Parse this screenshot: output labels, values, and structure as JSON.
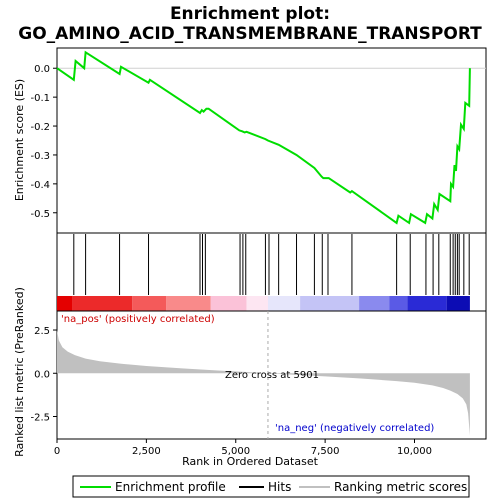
{
  "chart_data": {
    "type": "line",
    "title_line1": "Enrichment plot:",
    "title_line2": "GO_AMINO_ACID_TRANSMEMBRANE_TRANSPORT",
    "xlabel": "Rank in Ordered Dataset",
    "ylabel_top": "Enrichment score (ES)",
    "ylabel_bottom": "Ranked list metric (PreRanked)",
    "xlim": [
      0,
      12000
    ],
    "es_ylim": [
      -0.57,
      0.07
    ],
    "metric_ylim": [
      -3.8,
      3.6
    ],
    "x_ticks": [
      0,
      2500,
      5000,
      7500,
      10000
    ],
    "x_tick_labels": [
      "0",
      "2,500",
      "5,000",
      "7,500",
      "10,000"
    ],
    "es_ticks": [
      0.0,
      -0.1,
      -0.2,
      -0.3,
      -0.4,
      -0.5
    ],
    "es_tick_labels": [
      "0.0",
      "-0.1",
      "-0.2",
      "-0.3",
      "-0.4",
      "-0.5"
    ],
    "metric_ticks": [
      2.5,
      0.0,
      -2.5
    ],
    "metric_tick_labels": [
      "2.5",
      "0.0",
      "-2.5"
    ],
    "pos_label": "'na_pos' (positively correlated)",
    "neg_label": "'na_neg' (negatively correlated)",
    "zero_cross_label": "Zero cross at 5901",
    "zero_cross": 5901,
    "n_genes": 11550,
    "es_curve": {
      "x": [
        0,
        470,
        520,
        760,
        800,
        1750,
        1790,
        2560,
        2600,
        4000,
        4050,
        4100,
        4180,
        4240,
        5100,
        5180,
        5250,
        5300,
        5830,
        5900,
        6200,
        6700,
        7200,
        7400,
        7450,
        7600,
        8200,
        8250,
        9500,
        9550,
        9850,
        9900,
        10300,
        10350,
        10500,
        10550,
        10650,
        10700,
        11000,
        11020,
        11080,
        11120,
        11160,
        11200,
        11250,
        11300,
        11380,
        11420,
        11530,
        11550
      ],
      "y": [
        0.0,
        -0.04,
        0.025,
        0.0,
        0.055,
        -0.02,
        0.005,
        -0.05,
        -0.04,
        -0.155,
        -0.145,
        -0.15,
        -0.14,
        -0.14,
        -0.215,
        -0.218,
        -0.222,
        -0.22,
        -0.245,
        -0.25,
        -0.265,
        -0.3,
        -0.345,
        -0.375,
        -0.38,
        -0.38,
        -0.43,
        -0.425,
        -0.535,
        -0.51,
        -0.535,
        -0.505,
        -0.535,
        -0.505,
        -0.52,
        -0.47,
        -0.49,
        -0.435,
        -0.46,
        -0.4,
        -0.41,
        -0.335,
        -0.355,
        -0.27,
        -0.28,
        -0.195,
        -0.21,
        -0.12,
        -0.13,
        0.0
      ]
    },
    "hits": [
      470,
      800,
      1750,
      2560,
      4000,
      4070,
      4150,
      5120,
      5200,
      5280,
      5830,
      5930,
      6200,
      6700,
      7200,
      7420,
      7580,
      8250,
      9500,
      9880,
      10320,
      10520,
      10680,
      11000,
      11080,
      11140,
      11200,
      11250,
      11380,
      11530
    ],
    "metric_curve": {
      "x": [
        0,
        50,
        150,
        300,
        500,
        800,
        1200,
        1800,
        2500,
        3500,
        4500,
        5500,
        5901,
        6500,
        7500,
        8500,
        9500,
        10000,
        10500,
        10800,
        11000,
        11200,
        11350,
        11450,
        11500,
        11550
      ],
      "y": [
        2.5,
        1.9,
        1.5,
        1.25,
        1.05,
        0.85,
        0.7,
        0.55,
        0.42,
        0.28,
        0.16,
        0.05,
        0.0,
        -0.07,
        -0.18,
        -0.3,
        -0.45,
        -0.55,
        -0.7,
        -0.85,
        -1.0,
        -1.2,
        -1.45,
        -1.8,
        -2.3,
        -3.6
      ]
    },
    "band_colors": [
      "#e40000",
      "#ec2a2a",
      "#f45a5a",
      "#f98a8a",
      "#fbc2d8",
      "#fde6f2",
      "#e6e6fb",
      "#c4c4f6",
      "#8a8aee",
      "#5a5ae6",
      "#2a2ad6",
      "#0c0cb4"
    ],
    "band_edges": [
      0,
      420,
      2100,
      3050,
      4300,
      5300,
      5901,
      6800,
      8450,
      9300,
      9800,
      10900,
      11550
    ],
    "colors": {
      "es_line": "#00dd00",
      "hit_line": "#000000",
      "metric_fill": "#c0c0c0",
      "zero_line": "#aaaaaa"
    },
    "legend": {
      "items": [
        {
          "label": "Enrichment profile",
          "color": "#00dd00"
        },
        {
          "label": "Hits",
          "color": "#000000"
        },
        {
          "label": "Ranking metric scores",
          "color": "#c0c0c0"
        }
      ]
    }
  }
}
